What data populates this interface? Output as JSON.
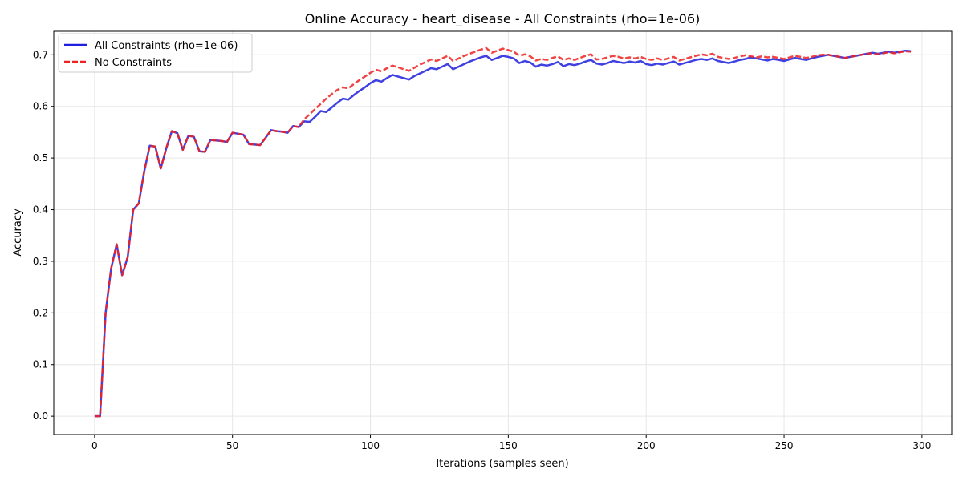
{
  "chart_data": {
    "type": "line",
    "title": "Online Accuracy - heart_disease - All Constraints (rho=1e-06)",
    "xlabel": "Iterations (samples seen)",
    "ylabel": "Accuracy",
    "xlim": [
      -14.8,
      310.8
    ],
    "ylim": [
      -0.0355,
      0.7455
    ],
    "xticks": [
      0,
      50,
      100,
      150,
      200,
      250,
      300
    ],
    "yticks": [
      0.0,
      0.1,
      0.2,
      0.3,
      0.4,
      0.5,
      0.6,
      0.7
    ],
    "xtick_labels": [
      "0",
      "50",
      "100",
      "150",
      "200",
      "250",
      "300"
    ],
    "ytick_labels": [
      "0.0",
      "0.1",
      "0.2",
      "0.3",
      "0.4",
      "0.5",
      "0.6",
      "0.7"
    ],
    "grid": true,
    "legend_position": "top-left",
    "series": [
      {
        "name": "All Constraints (rho=1e-06)",
        "color": "#1f1fdd",
        "style": "solid",
        "x": [
          0,
          2,
          4,
          6,
          8,
          10,
          12,
          14,
          16,
          18,
          20,
          22,
          24,
          26,
          28,
          30,
          32,
          34,
          36,
          38,
          40,
          42,
          44,
          46,
          48,
          50,
          52,
          54,
          56,
          58,
          60,
          62,
          64,
          66,
          68,
          70,
          72,
          74,
          76,
          78,
          80,
          82,
          84,
          86,
          88,
          90,
          92,
          94,
          96,
          98,
          100,
          102,
          104,
          106,
          108,
          110,
          112,
          114,
          116,
          118,
          120,
          122,
          124,
          126,
          128,
          130,
          132,
          134,
          136,
          138,
          140,
          142,
          144,
          146,
          148,
          150,
          152,
          154,
          156,
          158,
          160,
          162,
          164,
          166,
          168,
          170,
          172,
          174,
          176,
          178,
          180,
          182,
          184,
          186,
          188,
          190,
          192,
          194,
          196,
          198,
          200,
          202,
          204,
          206,
          208,
          210,
          212,
          214,
          216,
          218,
          220,
          222,
          224,
          226,
          228,
          230,
          232,
          234,
          236,
          238,
          240,
          242,
          244,
          246,
          248,
          250,
          252,
          254,
          256,
          258,
          260,
          262,
          264,
          266,
          268,
          270,
          272,
          274,
          276,
          278,
          280,
          282,
          284,
          286,
          288,
          290,
          292,
          294,
          296
        ],
        "y": [
          0.0,
          0.0,
          0.2,
          0.286,
          0.333,
          0.273,
          0.308,
          0.4,
          0.412,
          0.474,
          0.524,
          0.522,
          0.48,
          0.519,
          0.552,
          0.548,
          0.516,
          0.543,
          0.541,
          0.513,
          0.512,
          0.535,
          0.534,
          0.533,
          0.531,
          0.549,
          0.547,
          0.545,
          0.527,
          0.526,
          0.525,
          0.539,
          0.554,
          0.552,
          0.551,
          0.549,
          0.562,
          0.56,
          0.571,
          0.57,
          0.58,
          0.591,
          0.589,
          0.598,
          0.607,
          0.615,
          0.613,
          0.622,
          0.63,
          0.637,
          0.645,
          0.651,
          0.648,
          0.655,
          0.661,
          0.658,
          0.655,
          0.652,
          0.659,
          0.664,
          0.669,
          0.674,
          0.672,
          0.677,
          0.682,
          0.672,
          0.677,
          0.682,
          0.687,
          0.691,
          0.695,
          0.698,
          0.69,
          0.694,
          0.698,
          0.696,
          0.693,
          0.684,
          0.688,
          0.685,
          0.677,
          0.681,
          0.679,
          0.682,
          0.686,
          0.678,
          0.682,
          0.68,
          0.683,
          0.687,
          0.69,
          0.683,
          0.681,
          0.684,
          0.688,
          0.686,
          0.684,
          0.687,
          0.685,
          0.688,
          0.682,
          0.68,
          0.683,
          0.681,
          0.684,
          0.687,
          0.681,
          0.684,
          0.687,
          0.69,
          0.692,
          0.69,
          0.693,
          0.688,
          0.686,
          0.684,
          0.687,
          0.69,
          0.692,
          0.695,
          0.693,
          0.691,
          0.689,
          0.692,
          0.69,
          0.688,
          0.691,
          0.694,
          0.692,
          0.69,
          0.693,
          0.696,
          0.698,
          0.7,
          0.698,
          0.696,
          0.694,
          0.696,
          0.698,
          0.7,
          0.702,
          0.704,
          0.702,
          0.704,
          0.706,
          0.704,
          0.706,
          0.708,
          0.707
        ]
      },
      {
        "name": "No Constraints",
        "color": "#ee2222",
        "style": "dashed",
        "x": [
          0,
          2,
          4,
          6,
          8,
          10,
          12,
          14,
          16,
          18,
          20,
          22,
          24,
          26,
          28,
          30,
          32,
          34,
          36,
          38,
          40,
          42,
          44,
          46,
          48,
          50,
          52,
          54,
          56,
          58,
          60,
          62,
          64,
          66,
          68,
          70,
          72,
          74,
          76,
          78,
          80,
          82,
          84,
          86,
          88,
          90,
          92,
          94,
          96,
          98,
          100,
          102,
          104,
          106,
          108,
          110,
          112,
          114,
          116,
          118,
          120,
          122,
          124,
          126,
          128,
          130,
          132,
          134,
          136,
          138,
          140,
          142,
          144,
          146,
          148,
          150,
          152,
          154,
          156,
          158,
          160,
          162,
          164,
          166,
          168,
          170,
          172,
          174,
          176,
          178,
          180,
          182,
          184,
          186,
          188,
          190,
          192,
          194,
          196,
          198,
          200,
          202,
          204,
          206,
          208,
          210,
          212,
          214,
          216,
          218,
          220,
          222,
          224,
          226,
          228,
          230,
          232,
          234,
          236,
          238,
          240,
          242,
          244,
          246,
          248,
          250,
          252,
          254,
          256,
          258,
          260,
          262,
          264,
          266,
          268,
          270,
          272,
          274,
          276,
          278,
          280,
          282,
          284,
          286,
          288,
          290,
          292,
          294,
          296
        ],
        "y": [
          0.0,
          0.0,
          0.2,
          0.286,
          0.333,
          0.273,
          0.308,
          0.4,
          0.412,
          0.474,
          0.524,
          0.522,
          0.48,
          0.519,
          0.552,
          0.548,
          0.516,
          0.543,
          0.541,
          0.513,
          0.512,
          0.535,
          0.534,
          0.533,
          0.531,
          0.549,
          0.547,
          0.545,
          0.527,
          0.526,
          0.525,
          0.539,
          0.554,
          0.552,
          0.551,
          0.549,
          0.562,
          0.56,
          0.575,
          0.585,
          0.595,
          0.605,
          0.615,
          0.624,
          0.632,
          0.637,
          0.635,
          0.643,
          0.651,
          0.658,
          0.665,
          0.671,
          0.668,
          0.674,
          0.679,
          0.676,
          0.672,
          0.669,
          0.675,
          0.681,
          0.686,
          0.691,
          0.688,
          0.693,
          0.698,
          0.688,
          0.693,
          0.698,
          0.702,
          0.706,
          0.71,
          0.713,
          0.704,
          0.708,
          0.712,
          0.709,
          0.706,
          0.698,
          0.701,
          0.697,
          0.689,
          0.692,
          0.69,
          0.694,
          0.697,
          0.69,
          0.693,
          0.69,
          0.694,
          0.698,
          0.701,
          0.691,
          0.692,
          0.695,
          0.698,
          0.696,
          0.693,
          0.695,
          0.693,
          0.696,
          0.692,
          0.69,
          0.693,
          0.69,
          0.693,
          0.696,
          0.689,
          0.692,
          0.695,
          0.698,
          0.701,
          0.699,
          0.702,
          0.696,
          0.694,
          0.692,
          0.694,
          0.697,
          0.699,
          0.697,
          0.695,
          0.697,
          0.695,
          0.696,
          0.694,
          0.692,
          0.695,
          0.698,
          0.696,
          0.694,
          0.696,
          0.699,
          0.7,
          0.7,
          0.698,
          0.696,
          0.694,
          0.696,
          0.698,
          0.7,
          0.702,
          0.703,
          0.701,
          0.703,
          0.705,
          0.703,
          0.705,
          0.707,
          0.706
        ]
      }
    ]
  }
}
